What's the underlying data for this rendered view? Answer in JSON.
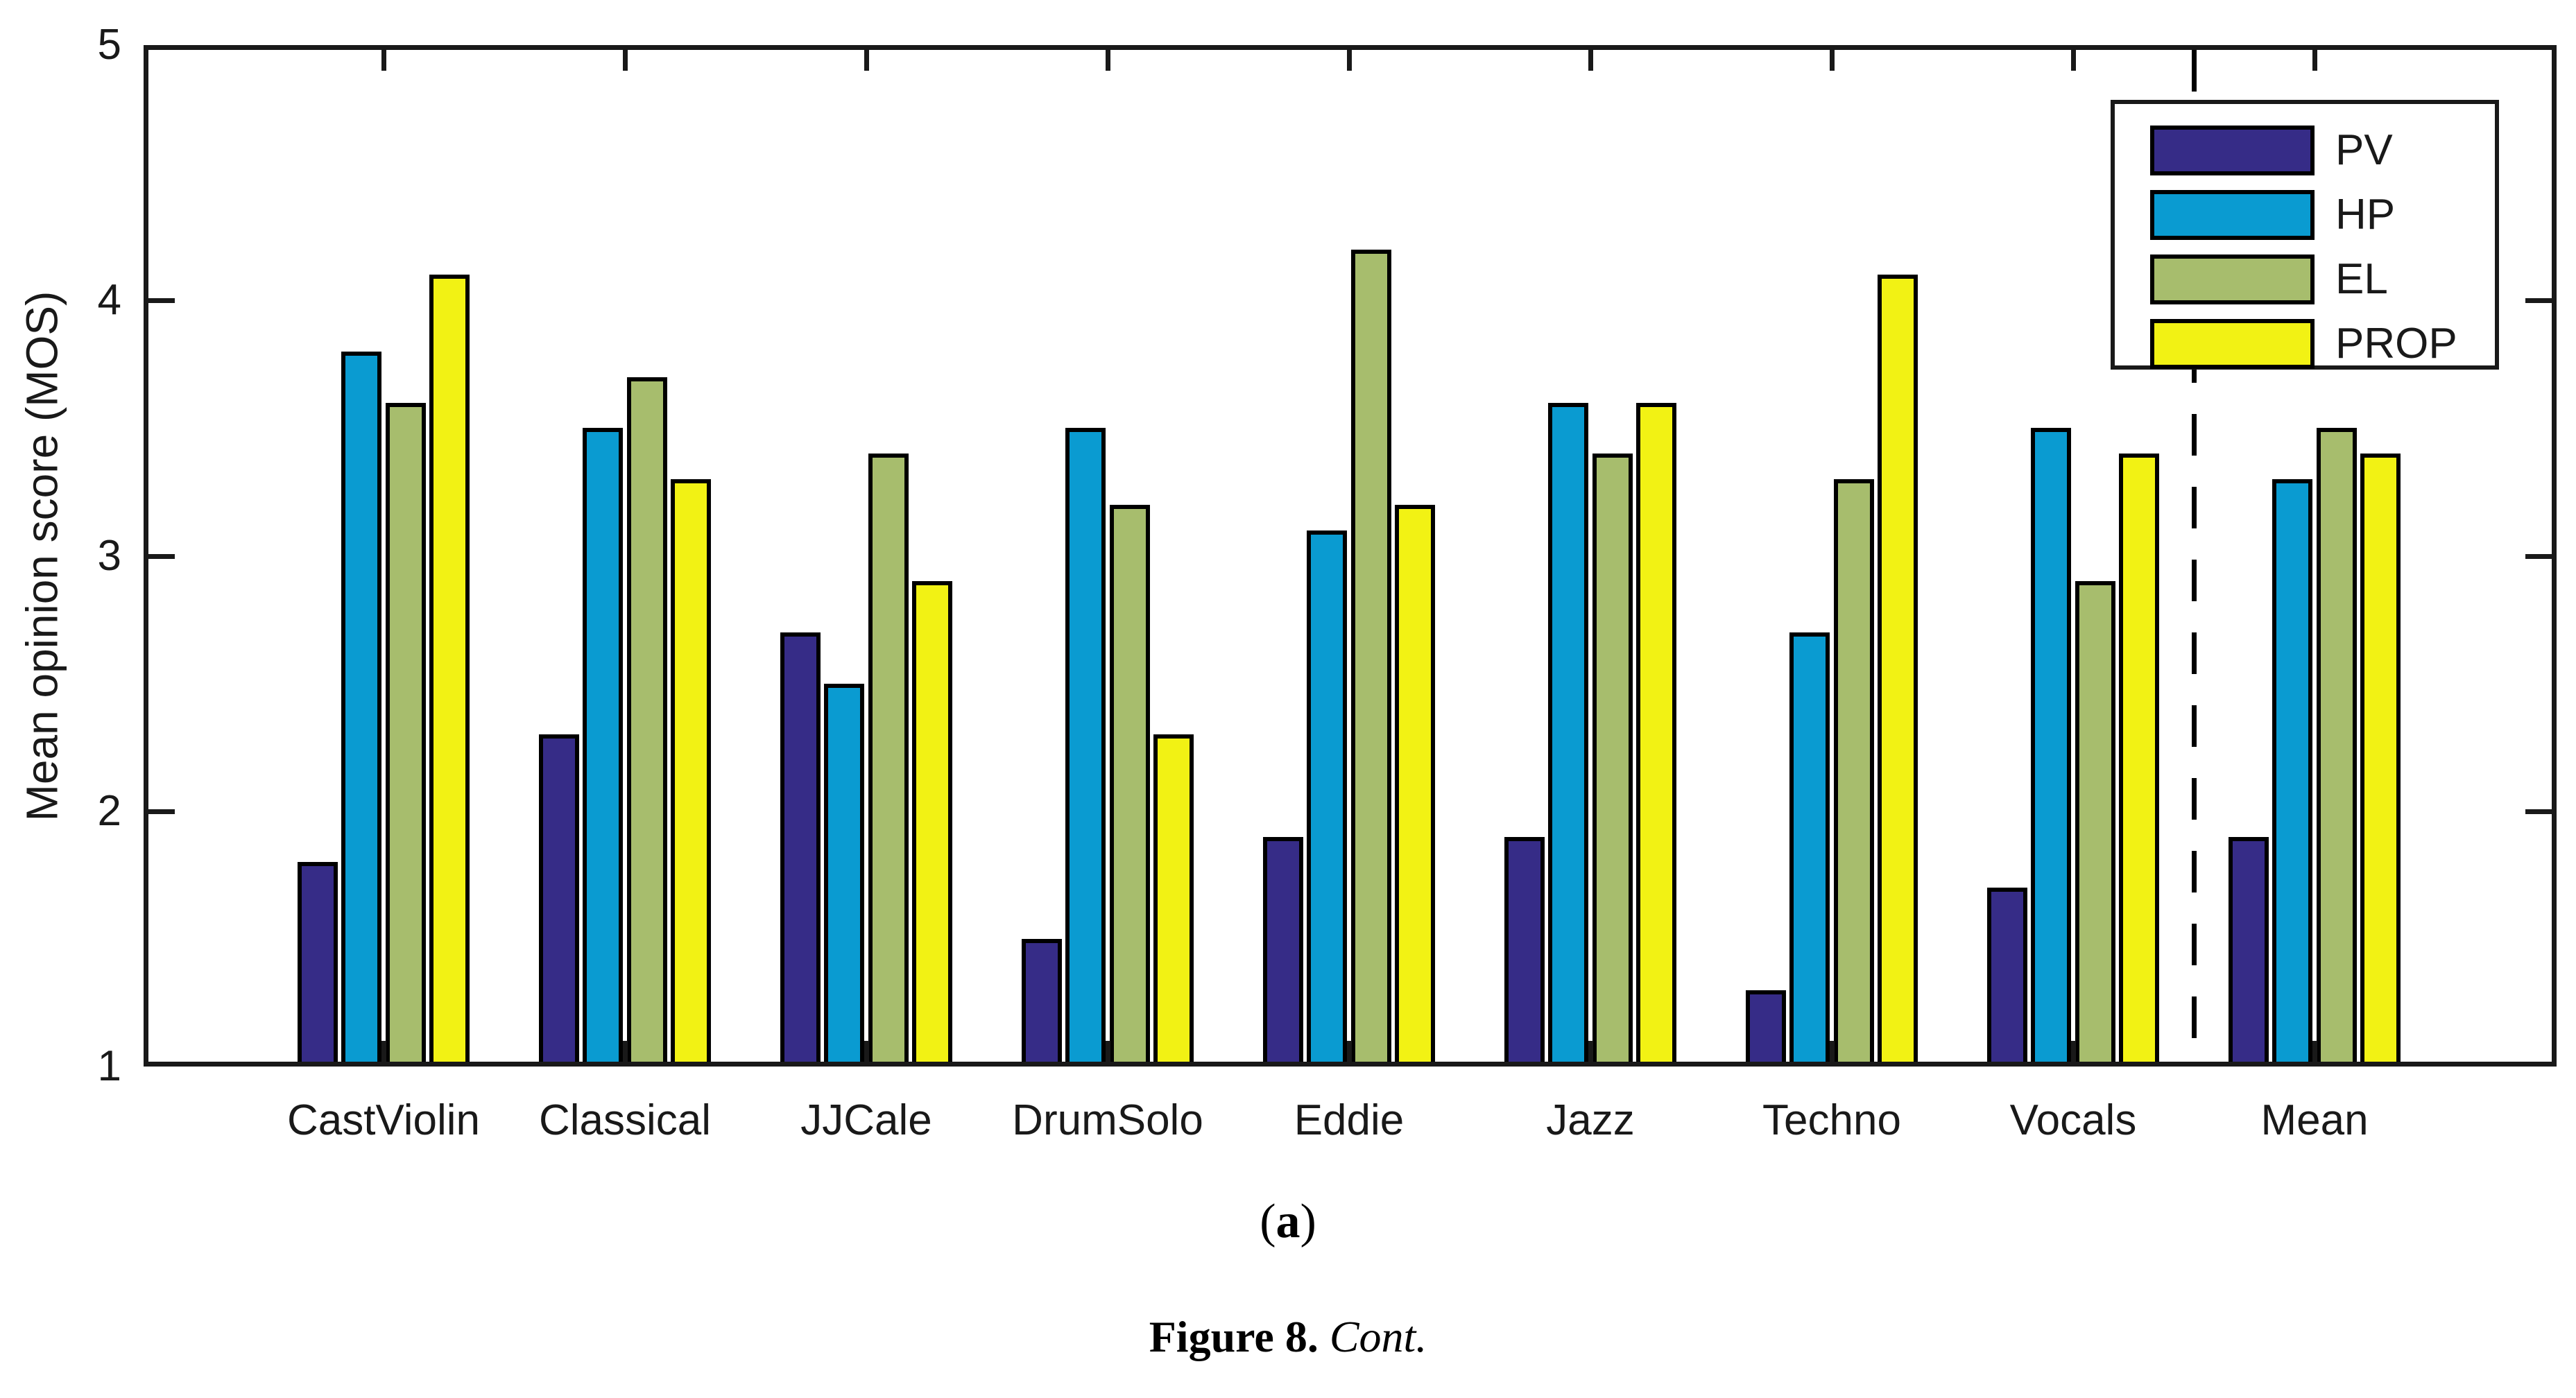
{
  "figure": {
    "panel_label_open": "(",
    "panel_label_letter": "a",
    "panel_label_close": ")",
    "caption_bold": "Figure 8.",
    "caption_italic": "Cont."
  },
  "chart_data": {
    "type": "bar",
    "title": "",
    "xlabel": "",
    "ylabel": "Mean opinion score (MOS)",
    "ylim": [
      1,
      5
    ],
    "yticks": [
      1,
      2,
      3,
      4,
      5
    ],
    "grid": false,
    "legend_position": "top-right",
    "legend_entries": [
      "PV",
      "HP",
      "EL",
      "PROP"
    ],
    "categories": [
      "CastViolin",
      "Classical",
      "JJCale",
      "DrumSolo",
      "Eddie",
      "Jazz",
      "Techno",
      "Vocals",
      "Mean"
    ],
    "separator_after_category": "Vocals",
    "series": [
      {
        "name": "PV",
        "color": "#362c87",
        "values": [
          1.8,
          2.3,
          2.7,
          1.5,
          1.9,
          1.9,
          1.3,
          1.7,
          1.9
        ]
      },
      {
        "name": "HP",
        "color": "#0a9bd1",
        "values": [
          3.8,
          3.5,
          2.5,
          3.5,
          3.1,
          3.6,
          2.7,
          3.5,
          3.3
        ]
      },
      {
        "name": "EL",
        "color": "#a7bd6d",
        "values": [
          3.6,
          3.7,
          3.4,
          3.2,
          4.2,
          3.4,
          3.3,
          2.9,
          3.5
        ]
      },
      {
        "name": "PROP",
        "color": "#f2f214",
        "values": [
          4.1,
          3.3,
          2.9,
          2.3,
          3.2,
          3.6,
          4.1,
          3.4,
          3.4
        ]
      }
    ],
    "axis_color": "#191919"
  }
}
